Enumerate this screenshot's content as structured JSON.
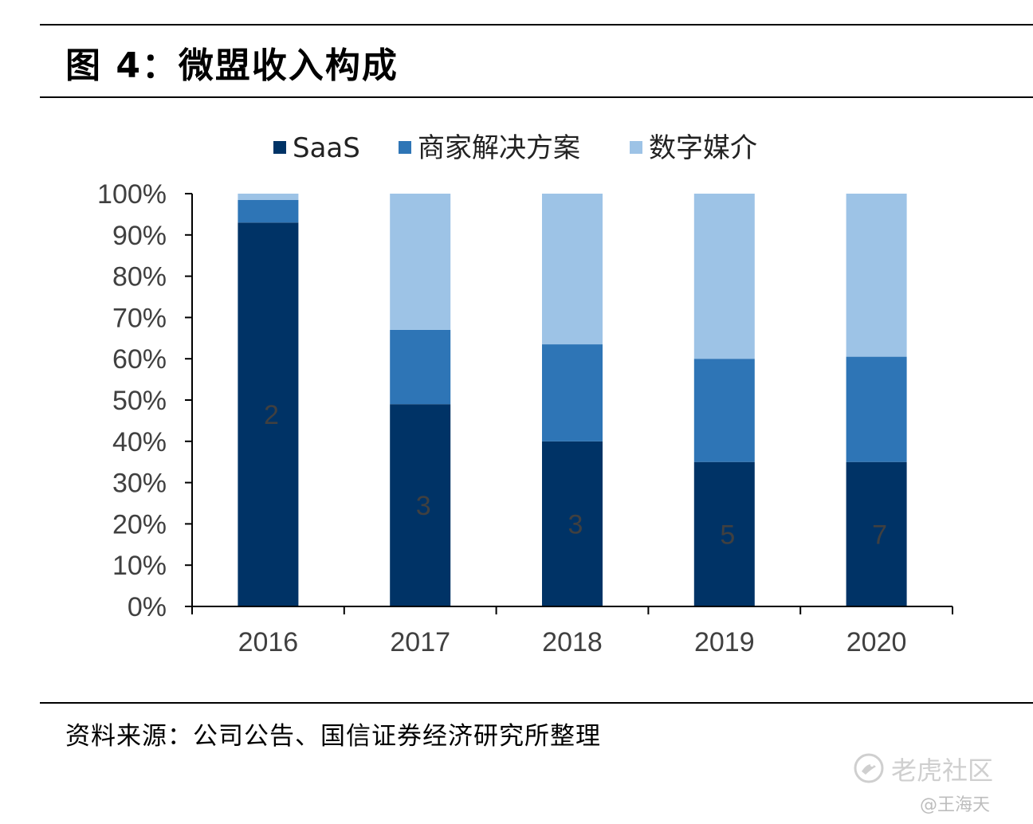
{
  "page_title": "图 4：微盟收入构成",
  "source_note": "资料来源：公司公告、国信证券经济研究所整理",
  "watermark": {
    "brand": "老虎社区",
    "user": "@王海天",
    "logo_icon": "tiger-community-logo-icon"
  },
  "colors": {
    "saas": "#003366",
    "merchant": "#2E75B6",
    "media": "#9DC3E6",
    "axis": "#000000",
    "tick_text": "#404040"
  },
  "chart_data": {
    "type": "bar",
    "stacked": true,
    "title": "",
    "xlabel": "",
    "ylabel": "",
    "categories": [
      "2016",
      "2017",
      "2018",
      "2019",
      "2020"
    ],
    "series": [
      {
        "name": "SaaS",
        "values": [
          93,
          49,
          40,
          35,
          35
        ]
      },
      {
        "name": "商家解决方案",
        "values": [
          5.5,
          18,
          23.5,
          25,
          25.5
        ]
      },
      {
        "name": "数字媒介",
        "values": [
          1.5,
          33,
          36.5,
          40,
          39.5
        ]
      }
    ],
    "data_labels": [
      "2",
      "3",
      "3",
      "5",
      "7"
    ],
    "ylim": [
      0,
      100
    ],
    "yticks": [
      "0%",
      "10%",
      "20%",
      "30%",
      "40%",
      "50%",
      "60%",
      "70%",
      "80%",
      "90%",
      "100%"
    ],
    "grid": false,
    "legend_position": "top"
  }
}
